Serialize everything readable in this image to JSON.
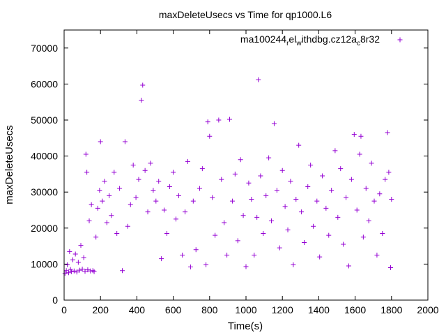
{
  "chart_data": {
    "type": "scatter",
    "title": "maxDeleteUsecs vs Time for qp1000.L6",
    "xlabel": "Time(s)",
    "ylabel": "maxDeleteUsecs",
    "xlim": [
      0,
      2000
    ],
    "ylim": [
      0,
      75000
    ],
    "x_ticks": [
      0,
      200,
      400,
      600,
      800,
      1000,
      1200,
      1400,
      1600,
      1800,
      2000
    ],
    "y_ticks": [
      0,
      10000,
      20000,
      30000,
      40000,
      50000,
      60000,
      70000
    ],
    "marker": "+",
    "legend_position": "top-right",
    "series": [
      {
        "name": "ma100244_rel_withdbg.cz12a_c8r32",
        "name_parts": [
          "ma100244",
          "r",
          "el",
          "w",
          "ithdbg.cz12a",
          "c",
          "8r32"
        ],
        "color": "#9400d3",
        "points": [
          [
            5,
            7400
          ],
          [
            12,
            8200
          ],
          [
            18,
            9800
          ],
          [
            25,
            7600
          ],
          [
            30,
            13500
          ],
          [
            35,
            8500
          ],
          [
            40,
            7900
          ],
          [
            48,
            11200
          ],
          [
            55,
            8100
          ],
          [
            62,
            12800
          ],
          [
            70,
            7800
          ],
          [
            78,
            10500
          ],
          [
            85,
            8300
          ],
          [
            92,
            15200
          ],
          [
            100,
            8600
          ],
          [
            108,
            11800
          ],
          [
            115,
            8000
          ],
          [
            120,
            40500
          ],
          [
            125,
            35500
          ],
          [
            130,
            8400
          ],
          [
            138,
            22000
          ],
          [
            145,
            8100
          ],
          [
            150,
            26500
          ],
          [
            158,
            8200
          ],
          [
            165,
            7900
          ],
          [
            175,
            17500
          ],
          [
            185,
            25500
          ],
          [
            195,
            30500
          ],
          [
            200,
            44000
          ],
          [
            210,
            27500
          ],
          [
            222,
            33000
          ],
          [
            235,
            21500
          ],
          [
            248,
            29000
          ],
          [
            260,
            23500
          ],
          [
            275,
            35500
          ],
          [
            290,
            18500
          ],
          [
            305,
            31000
          ],
          [
            320,
            8200
          ],
          [
            335,
            44000
          ],
          [
            350,
            20500
          ],
          [
            365,
            26500
          ],
          [
            380,
            37500
          ],
          [
            395,
            28500
          ],
          [
            410,
            33500
          ],
          [
            425,
            55500
          ],
          [
            432,
            59700
          ],
          [
            445,
            36000
          ],
          [
            460,
            24500
          ],
          [
            475,
            38000
          ],
          [
            490,
            30500
          ],
          [
            505,
            27500
          ],
          [
            520,
            33000
          ],
          [
            535,
            11500
          ],
          [
            550,
            25000
          ],
          [
            565,
            18500
          ],
          [
            580,
            31500
          ],
          [
            600,
            35500
          ],
          [
            615,
            22500
          ],
          [
            630,
            29000
          ],
          [
            650,
            12500
          ],
          [
            665,
            24500
          ],
          [
            680,
            38500
          ],
          [
            695,
            9200
          ],
          [
            710,
            27500
          ],
          [
            725,
            14000
          ],
          [
            745,
            31000
          ],
          [
            760,
            36500
          ],
          [
            780,
            9800
          ],
          [
            790,
            49500
          ],
          [
            800,
            45500
          ],
          [
            815,
            28500
          ],
          [
            830,
            18000
          ],
          [
            850,
            50000
          ],
          [
            865,
            33500
          ],
          [
            880,
            21500
          ],
          [
            895,
            12500
          ],
          [
            910,
            50200
          ],
          [
            925,
            27500
          ],
          [
            940,
            35000
          ],
          [
            955,
            16500
          ],
          [
            970,
            39000
          ],
          [
            985,
            23500
          ],
          [
            1000,
            9300
          ],
          [
            1015,
            32500
          ],
          [
            1030,
            28000
          ],
          [
            1045,
            12500
          ],
          [
            1060,
            23000
          ],
          [
            1068,
            61200
          ],
          [
            1080,
            34500
          ],
          [
            1095,
            18500
          ],
          [
            1110,
            29000
          ],
          [
            1125,
            39500
          ],
          [
            1140,
            22000
          ],
          [
            1155,
            49000
          ],
          [
            1170,
            30500
          ],
          [
            1185,
            14500
          ],
          [
            1200,
            36000
          ],
          [
            1215,
            26000
          ],
          [
            1230,
            19500
          ],
          [
            1245,
            33000
          ],
          [
            1260,
            9800
          ],
          [
            1275,
            28000
          ],
          [
            1290,
            43000
          ],
          [
            1305,
            24500
          ],
          [
            1320,
            16000
          ],
          [
            1340,
            31500
          ],
          [
            1355,
            37500
          ],
          [
            1370,
            20500
          ],
          [
            1390,
            27500
          ],
          [
            1405,
            12000
          ],
          [
            1420,
            34500
          ],
          [
            1440,
            25500
          ],
          [
            1455,
            18000
          ],
          [
            1470,
            30500
          ],
          [
            1490,
            41500
          ],
          [
            1505,
            23000
          ],
          [
            1520,
            36500
          ],
          [
            1535,
            15500
          ],
          [
            1550,
            28500
          ],
          [
            1565,
            9500
          ],
          [
            1580,
            33500
          ],
          [
            1595,
            46000
          ],
          [
            1610,
            25000
          ],
          [
            1625,
            40500
          ],
          [
            1632,
            45500
          ],
          [
            1645,
            17500
          ],
          [
            1660,
            31000
          ],
          [
            1675,
            22000
          ],
          [
            1690,
            38000
          ],
          [
            1705,
            27500
          ],
          [
            1720,
            12500
          ],
          [
            1735,
            29500
          ],
          [
            1750,
            18500
          ],
          [
            1765,
            33500
          ],
          [
            1778,
            46500
          ],
          [
            1785,
            35500
          ],
          [
            1795,
            9000
          ],
          [
            1800,
            28000
          ]
        ]
      }
    ]
  }
}
